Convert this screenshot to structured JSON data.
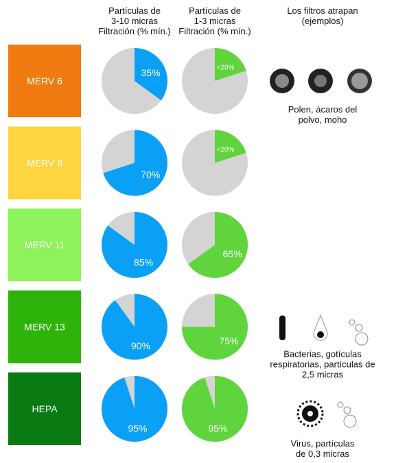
{
  "headers": [
    {
      "lines": [
        "Partículas de",
        "3-10 micras",
        "Filtración (% mín.)"
      ]
    },
    {
      "lines": [
        "Partículas de",
        "1-3 micras",
        "Filtración (% mín.)"
      ]
    },
    {
      "lines": [
        "Los filtros atrapan",
        "(ejemplos)"
      ]
    }
  ],
  "colors": {
    "coarse": "#0aa0f5",
    "fine": "#5fd43c",
    "rest": "#d4d4d4"
  },
  "rows": [
    {
      "name": "MERV 6",
      "color": "#ee7a10",
      "coarse": 35,
      "coarse_label": "35%",
      "fine": 20,
      "fine_label": "<20%",
      "examples": [
        "Polen, ácaros del",
        "polvo, moho"
      ]
    },
    {
      "name": "MERV 8",
      "color": "#fdd540",
      "coarse": 70,
      "coarse_label": "70%",
      "fine": 20,
      "fine_label": "<20%"
    },
    {
      "name": "MERV 11",
      "color": "#8ef35a",
      "coarse": 85,
      "coarse_label": "85%",
      "fine": 65,
      "fine_label": "65%"
    },
    {
      "name": "MERV 13",
      "color": "#2db30a",
      "coarse": 90,
      "coarse_label": "90%",
      "fine": 75,
      "fine_label": "75%",
      "examples": [
        "Bacterias, gotículas",
        "respiratorias, partículas de",
        "2,5 micras"
      ]
    },
    {
      "name": "HEPA",
      "color": "#0a7a12",
      "coarse": 95,
      "coarse_label": "95%",
      "fine": 95,
      "fine_label": "95%",
      "examples": [
        "Virus, partículas",
        "de 0,3 micras"
      ]
    }
  ]
}
